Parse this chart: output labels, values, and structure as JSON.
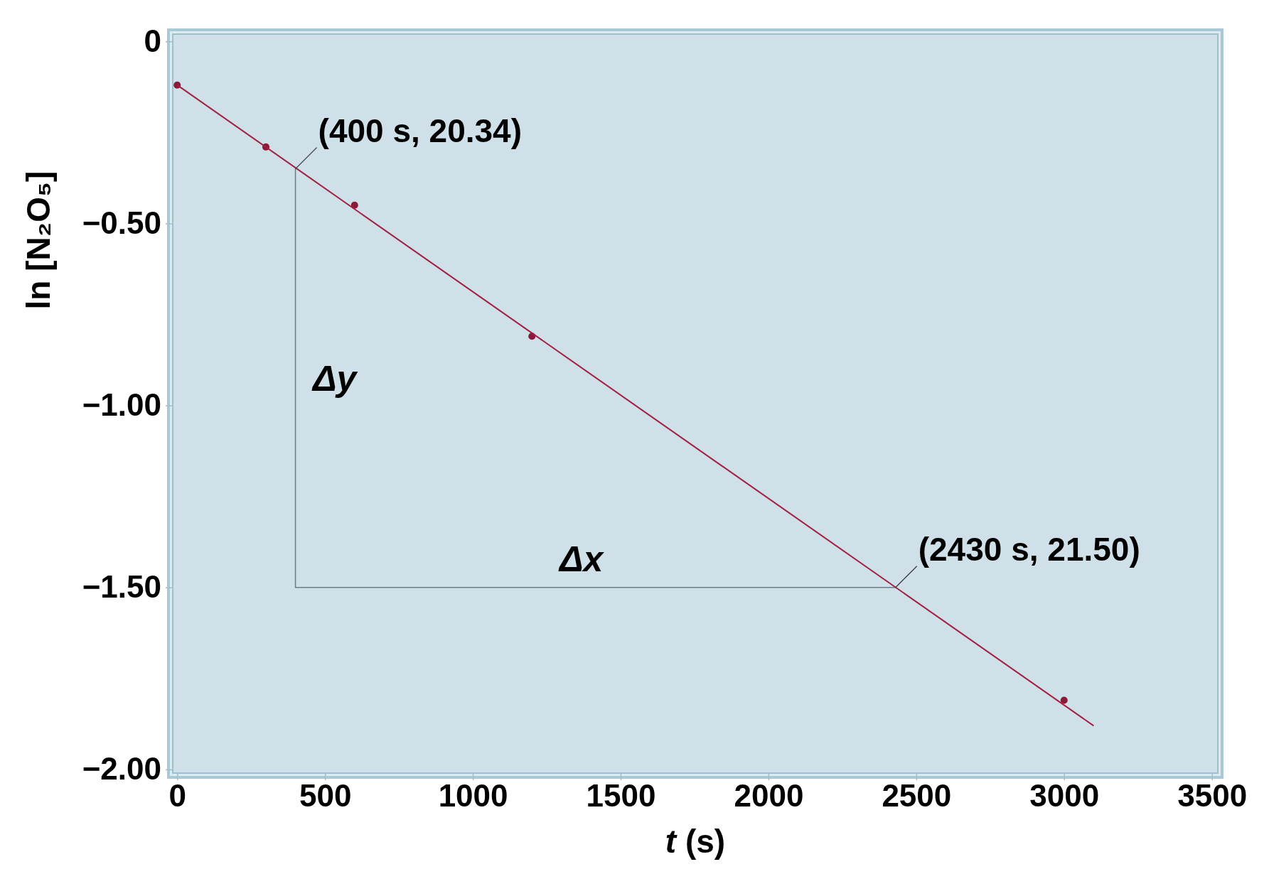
{
  "chart_data": {
    "type": "scatter",
    "xlabel": "t (s)",
    "ylabel": "ln [N₂O₅]",
    "xlim": [
      -15,
      3520
    ],
    "xticks": [
      0,
      500,
      1000,
      1500,
      2000,
      2500,
      3000,
      3500
    ],
    "ylim": [
      -2.01,
      0.02
    ],
    "yticks": [
      0,
      {
        "value": -0.5,
        "label": "−0.50"
      },
      {
        "value": -1,
        "label": "−1.00"
      },
      {
        "value": -1.5,
        "label": "−1.50"
      },
      {
        "value": -2,
        "label": "−2.00"
      }
    ],
    "grid": false,
    "marker": "circle",
    "series": [
      {
        "color": "#8b1a3a",
        "x": [
          0,
          300,
          600,
          1200,
          3000
        ],
        "values": [
          -0.12,
          -0.29,
          -0.45,
          -0.81,
          -1.81
        ]
      },
      {
        "type": "line",
        "color": "#a0203f",
        "x": [
          0,
          3100
        ],
        "values": [
          -0.12,
          -1.88
        ],
        "line_style": "solid",
        "marker": "none"
      }
    ],
    "annotations": [
      {
        "text": "(400 s, 20.34)",
        "x": 400,
        "y": -0.35
      },
      {
        "text": "(2430 s, 21.50)",
        "x": 2430,
        "y": -1.5
      },
      "Δy",
      "Δx"
    ]
  }
}
